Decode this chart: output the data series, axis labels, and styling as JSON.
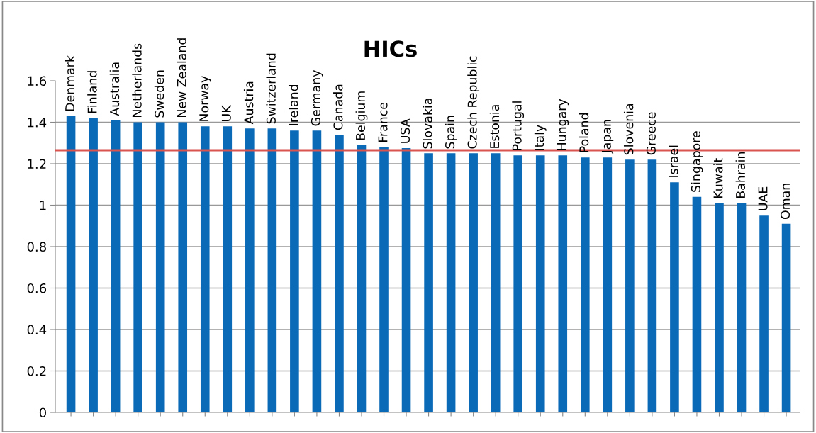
{
  "chart_data": {
    "type": "bar",
    "title": "HICs",
    "categories": [
      "Denmark",
      "Finland",
      "Australia",
      "Netherlands",
      "Sweden",
      "New Zealand",
      "Norway",
      "UK",
      "Austria",
      "Switzerland",
      "Ireland",
      "Germany",
      "Canada",
      "Belgium",
      "France",
      "USA",
      "Slovakia",
      "Spain",
      "Czech Republic",
      "Estonia",
      "Portugal",
      "Italy",
      "Hungary",
      "Poland",
      "Japan",
      "Slovenia",
      "Greece",
      "Israel",
      "Singapore",
      "Kuwait",
      "Bahrain",
      "UAE",
      "Oman"
    ],
    "values": [
      1.43,
      1.42,
      1.41,
      1.4,
      1.4,
      1.4,
      1.38,
      1.38,
      1.37,
      1.37,
      1.36,
      1.36,
      1.34,
      1.29,
      1.28,
      1.275,
      1.25,
      1.25,
      1.25,
      1.25,
      1.24,
      1.24,
      1.24,
      1.23,
      1.23,
      1.22,
      1.22,
      1.11,
      1.04,
      1.01,
      1.01,
      0.95,
      0.91
    ],
    "color": "#0a6ab8",
    "ylim": [
      0,
      1.6
    ],
    "yticks": [
      0,
      0.2,
      0.4,
      0.6,
      0.8,
      1,
      1.2,
      1.4,
      1.6
    ],
    "ref_lines": [
      {
        "axis": "y",
        "value": 1.265,
        "color": "#d9534f"
      }
    ],
    "grid": "y",
    "legend": false
  }
}
